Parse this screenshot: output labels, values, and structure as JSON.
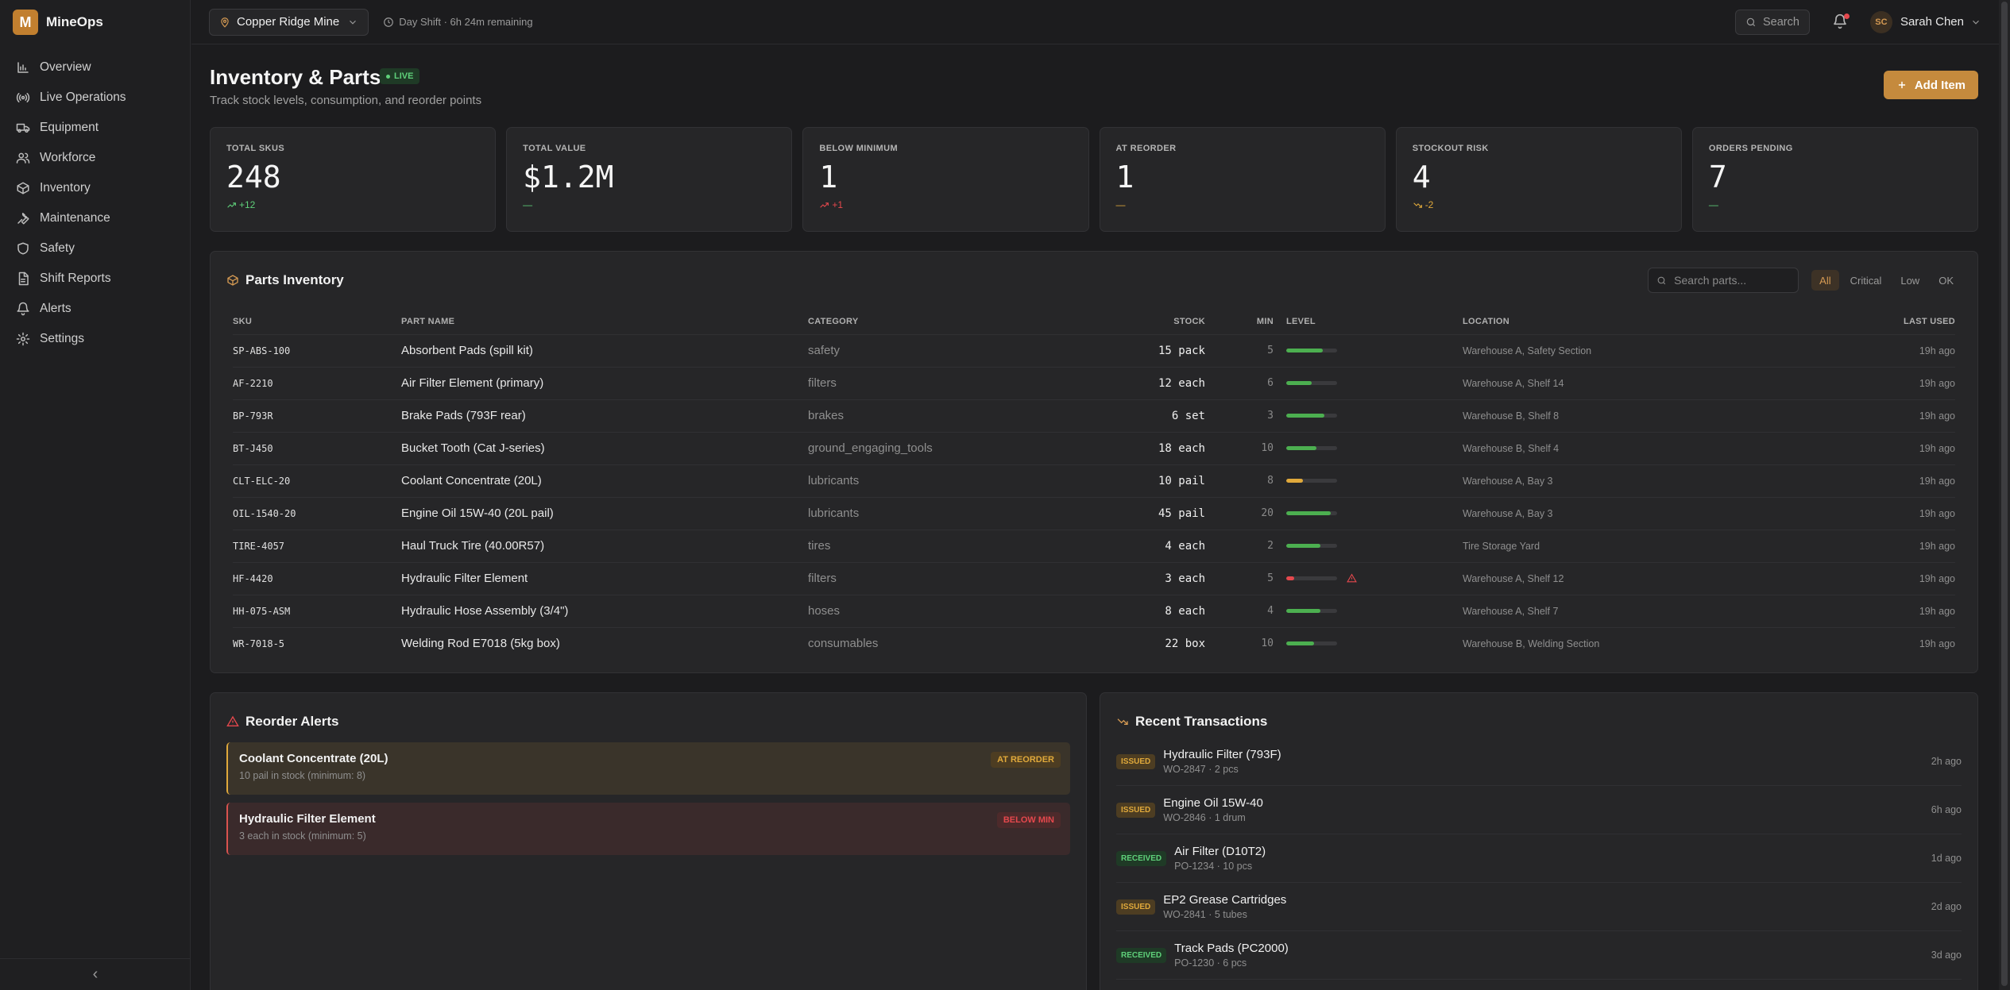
{
  "app": {
    "logo_letter": "M",
    "name": "MineOps"
  },
  "sidebar": {
    "items": [
      {
        "label": "Overview",
        "icon": "bar-chart-icon"
      },
      {
        "label": "Live Operations",
        "icon": "radio-icon"
      },
      {
        "label": "Equipment",
        "icon": "truck-icon"
      },
      {
        "label": "Workforce",
        "icon": "users-icon"
      },
      {
        "label": "Inventory",
        "icon": "package-icon"
      },
      {
        "label": "Maintenance",
        "icon": "wrench-icon"
      },
      {
        "label": "Safety",
        "icon": "shield-icon"
      },
      {
        "label": "Shift Reports",
        "icon": "file-icon"
      },
      {
        "label": "Alerts",
        "icon": "bell-icon"
      },
      {
        "label": "Settings",
        "icon": "gear-icon"
      }
    ],
    "collapse_glyph": "‹"
  },
  "topbar": {
    "site": "Copper Ridge Mine",
    "shift": "Day Shift · 6h 24m remaining",
    "search_label": "Search",
    "user": {
      "initials": "SC",
      "name": "Sarah Chen"
    }
  },
  "page": {
    "title": "Inventory & Parts",
    "live_label": "LIVE",
    "subtitle": "Track stock levels, consumption, and reorder points",
    "add_label": "Add Item"
  },
  "stats": [
    {
      "label": "TOTAL SKUS",
      "value": "248",
      "delta": "+12",
      "trend": "up",
      "color": "#5fd07a"
    },
    {
      "label": "TOTAL VALUE",
      "value": "$1.2M",
      "delta": "—",
      "trend": "none",
      "color": "#5fd07a"
    },
    {
      "label": "BELOW MINIMUM",
      "value": "1",
      "delta": "+1",
      "trend": "up",
      "color": "#e5484d"
    },
    {
      "label": "AT REORDER",
      "value": "1",
      "delta": "—",
      "trend": "none",
      "color": "#e0a93b"
    },
    {
      "label": "STOCKOUT RISK",
      "value": "4",
      "delta": "-2",
      "trend": "down",
      "color": "#e0a93b"
    },
    {
      "label": "ORDERS PENDING",
      "value": "7",
      "delta": "—",
      "trend": "none",
      "color": "#5fd07a"
    }
  ],
  "parts": {
    "title": "Parts Inventory",
    "search_placeholder": "Search parts...",
    "filters": [
      "All",
      "Critical",
      "Low",
      "OK"
    ],
    "active_filter": "All",
    "columns": [
      "SKU",
      "PART NAME",
      "CATEGORY",
      "STOCK",
      "MIN",
      "LEVEL",
      "LOCATION",
      "LAST USED"
    ],
    "rows": [
      {
        "sku": "SP-ABS-100",
        "name": "Absorbent Pads (spill kit)",
        "category": "safety",
        "stock": "15 pack",
        "min": "5",
        "level": 0.72,
        "level_color": "#4caf50",
        "warn": false,
        "location": "Warehouse A, Safety Section",
        "last_used": "19h ago"
      },
      {
        "sku": "AF-2210",
        "name": "Air Filter Element (primary)",
        "category": "filters",
        "stock": "12 each",
        "min": "6",
        "level": 0.5,
        "level_color": "#4caf50",
        "warn": false,
        "location": "Warehouse A, Shelf 14",
        "last_used": "19h ago"
      },
      {
        "sku": "BP-793R",
        "name": "Brake Pads (793F rear)",
        "category": "brakes",
        "stock": "6 set",
        "min": "3",
        "level": 0.75,
        "level_color": "#4caf50",
        "warn": false,
        "location": "Warehouse B, Shelf 8",
        "last_used": "19h ago"
      },
      {
        "sku": "BT-J450",
        "name": "Bucket Tooth (Cat J-series)",
        "category": "ground_engaging_tools",
        "stock": "18 each",
        "min": "10",
        "level": 0.6,
        "level_color": "#4caf50",
        "warn": false,
        "location": "Warehouse B, Shelf 4",
        "last_used": "19h ago"
      },
      {
        "sku": "CLT-ELC-20",
        "name": "Coolant Concentrate (20L)",
        "category": "lubricants",
        "stock": "10 pail",
        "min": "8",
        "level": 0.33,
        "level_color": "#e0a93b",
        "warn": false,
        "location": "Warehouse A, Bay 3",
        "last_used": "19h ago"
      },
      {
        "sku": "OIL-1540-20",
        "name": "Engine Oil 15W-40 (20L pail)",
        "category": "lubricants",
        "stock": "45 pail",
        "min": "20",
        "level": 0.88,
        "level_color": "#4caf50",
        "warn": false,
        "location": "Warehouse A, Bay 3",
        "last_used": "19h ago"
      },
      {
        "sku": "TIRE-4057",
        "name": "Haul Truck Tire (40.00R57)",
        "category": "tires",
        "stock": "4 each",
        "min": "2",
        "level": 0.67,
        "level_color": "#4caf50",
        "warn": false,
        "location": "Tire Storage Yard",
        "last_used": "19h ago"
      },
      {
        "sku": "HF-4420",
        "name": "Hydraulic Filter Element",
        "category": "filters",
        "stock": "3 each",
        "min": "5",
        "level": 0.15,
        "level_color": "#e5484d",
        "warn": true,
        "location": "Warehouse A, Shelf 12",
        "last_used": "19h ago"
      },
      {
        "sku": "HH-075-ASM",
        "name": "Hydraulic Hose Assembly (3/4\")",
        "category": "hoses",
        "stock": "8 each",
        "min": "4",
        "level": 0.67,
        "level_color": "#4caf50",
        "warn": false,
        "location": "Warehouse A, Shelf 7",
        "last_used": "19h ago"
      },
      {
        "sku": "WR-7018-5",
        "name": "Welding Rod E7018 (5kg box)",
        "category": "consumables",
        "stock": "22 box",
        "min": "10",
        "level": 0.55,
        "level_color": "#4caf50",
        "warn": false,
        "location": "Warehouse B, Welding Section",
        "last_used": "19h ago"
      }
    ]
  },
  "reorder_alerts": {
    "title": "Reorder Alerts",
    "items": [
      {
        "name": "Coolant Concentrate (20L)",
        "detail": "10 pail in stock (minimum: 8)",
        "badge": "AT REORDER",
        "kind": "reorder"
      },
      {
        "name": "Hydraulic Filter Element",
        "detail": "3 each in stock (minimum: 5)",
        "badge": "BELOW MIN",
        "kind": "below"
      }
    ]
  },
  "transactions": {
    "title": "Recent Transactions",
    "items": [
      {
        "type": "ISSUED",
        "name": "Hydraulic Filter (793F)",
        "detail": "WO-2847 · 2 pcs",
        "time": "2h ago"
      },
      {
        "type": "ISSUED",
        "name": "Engine Oil 15W-40",
        "detail": "WO-2846 · 1 drum",
        "time": "6h ago"
      },
      {
        "type": "RECEIVED",
        "name": "Air Filter (D10T2)",
        "detail": "PO-1234 · 10 pcs",
        "time": "1d ago"
      },
      {
        "type": "ISSUED",
        "name": "EP2 Grease Cartridges",
        "detail": "WO-2841 · 5 tubes",
        "time": "2d ago"
      },
      {
        "type": "RECEIVED",
        "name": "Track Pads (PC2000)",
        "detail": "PO-1230 · 6 pcs",
        "time": "3d ago"
      }
    ]
  },
  "colors": {
    "accent": "#c58a3d",
    "ok": "#5fd07a",
    "warn": "#e0a93b",
    "danger": "#e5484d"
  }
}
